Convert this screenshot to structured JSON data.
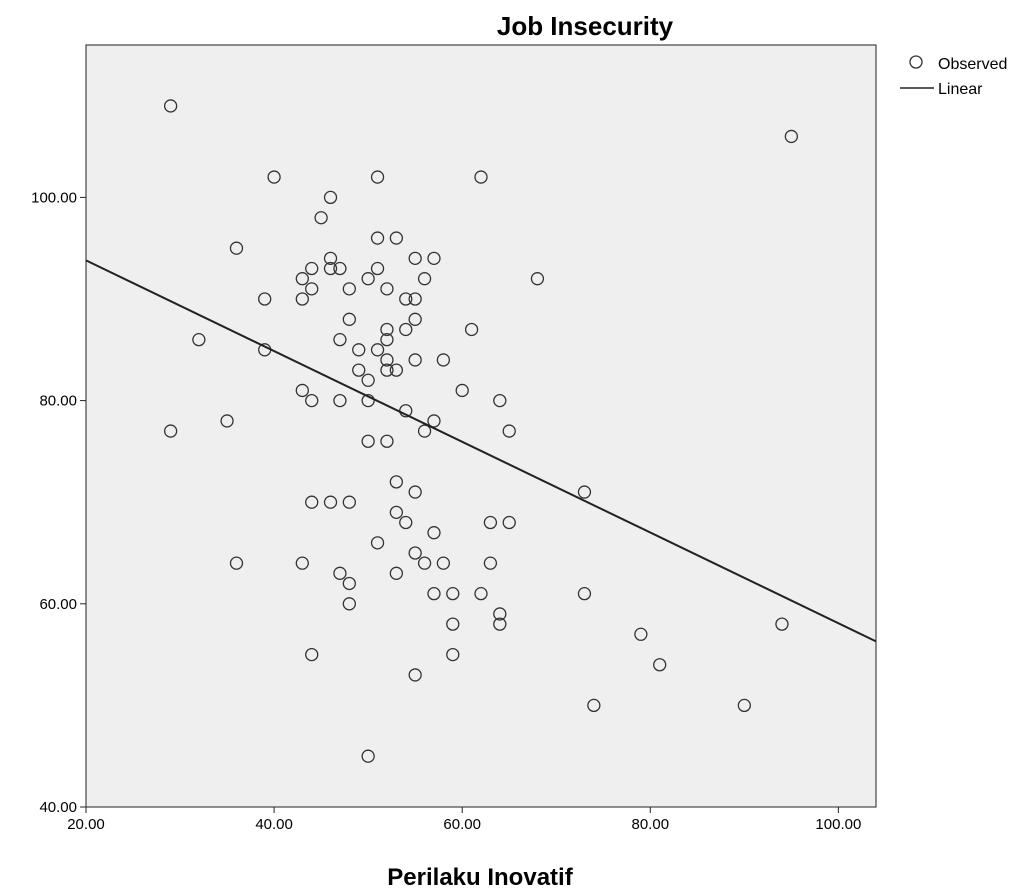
{
  "chart_data": {
    "type": "scatter",
    "title": "Job Insecurity",
    "xlabel": "Perilaku Inovatif",
    "ylabel": "",
    "xlim": [
      20,
      104
    ],
    "ylim": [
      40,
      115
    ],
    "xticks": [
      "20.00",
      "40.00",
      "60.00",
      "80.00",
      "100.00"
    ],
    "yticks": [
      "40.00",
      "60.00",
      "80.00",
      "100.00"
    ],
    "xtick_values": [
      20,
      40,
      60,
      80,
      100
    ],
    "ytick_values": [
      40,
      60,
      80,
      100
    ],
    "grid": false,
    "legend_placement": "top-right",
    "legend": {
      "observed": "Observed",
      "linear": "Linear"
    },
    "plot_background": "#efefef",
    "marker_color": "#333333",
    "line_color": "#222222",
    "series": [
      {
        "name": "Observed",
        "points": [
          [
            29,
            109
          ],
          [
            95,
            106
          ],
          [
            40,
            102
          ],
          [
            51,
            102
          ],
          [
            62,
            102
          ],
          [
            46,
            100
          ],
          [
            45,
            98
          ],
          [
            51,
            96
          ],
          [
            53,
            96
          ],
          [
            36,
            95
          ],
          [
            46,
            94
          ],
          [
            55,
            94
          ],
          [
            57,
            94
          ],
          [
            44,
            93
          ],
          [
            46,
            93
          ],
          [
            47,
            93
          ],
          [
            51,
            93
          ],
          [
            43,
            92
          ],
          [
            50,
            92
          ],
          [
            56,
            92
          ],
          [
            68,
            92
          ],
          [
            44,
            91
          ],
          [
            48,
            91
          ],
          [
            52,
            91
          ],
          [
            39,
            90
          ],
          [
            43,
            90
          ],
          [
            54,
            90
          ],
          [
            55,
            90
          ],
          [
            48,
            88
          ],
          [
            55,
            88
          ],
          [
            52,
            87
          ],
          [
            54,
            87
          ],
          [
            61,
            87
          ],
          [
            32,
            86
          ],
          [
            47,
            86
          ],
          [
            52,
            86
          ],
          [
            39,
            85
          ],
          [
            49,
            85
          ],
          [
            51,
            85
          ],
          [
            52,
            84
          ],
          [
            55,
            84
          ],
          [
            58,
            84
          ],
          [
            49,
            83
          ],
          [
            52,
            83
          ],
          [
            53,
            83
          ],
          [
            50,
            82
          ],
          [
            43,
            81
          ],
          [
            60,
            81
          ],
          [
            44,
            80
          ],
          [
            47,
            80
          ],
          [
            50,
            80
          ],
          [
            64,
            80
          ],
          [
            54,
            79
          ],
          [
            35,
            78
          ],
          [
            57,
            78
          ],
          [
            29,
            77
          ],
          [
            56,
            77
          ],
          [
            65,
            77
          ],
          [
            50,
            76
          ],
          [
            52,
            76
          ],
          [
            53,
            72
          ],
          [
            55,
            71
          ],
          [
            73,
            71
          ],
          [
            44,
            70
          ],
          [
            46,
            70
          ],
          [
            48,
            70
          ],
          [
            53,
            69
          ],
          [
            54,
            68
          ],
          [
            63,
            68
          ],
          [
            65,
            68
          ],
          [
            57,
            67
          ],
          [
            51,
            66
          ],
          [
            55,
            65
          ],
          [
            36,
            64
          ],
          [
            43,
            64
          ],
          [
            56,
            64
          ],
          [
            58,
            64
          ],
          [
            63,
            64
          ],
          [
            47,
            63
          ],
          [
            53,
            63
          ],
          [
            48,
            62
          ],
          [
            57,
            61
          ],
          [
            59,
            61
          ],
          [
            62,
            61
          ],
          [
            73,
            61
          ],
          [
            48,
            60
          ],
          [
            64,
            59
          ],
          [
            59,
            58
          ],
          [
            64,
            58
          ],
          [
            94,
            58
          ],
          [
            79,
            57
          ],
          [
            44,
            55
          ],
          [
            59,
            55
          ],
          [
            81,
            54
          ],
          [
            55,
            53
          ],
          [
            74,
            50
          ],
          [
            90,
            50
          ],
          [
            50,
            45
          ]
        ]
      },
      {
        "name": "Linear",
        "line": [
          [
            20,
            93.8
          ],
          [
            104,
            56.3
          ]
        ]
      }
    ]
  }
}
